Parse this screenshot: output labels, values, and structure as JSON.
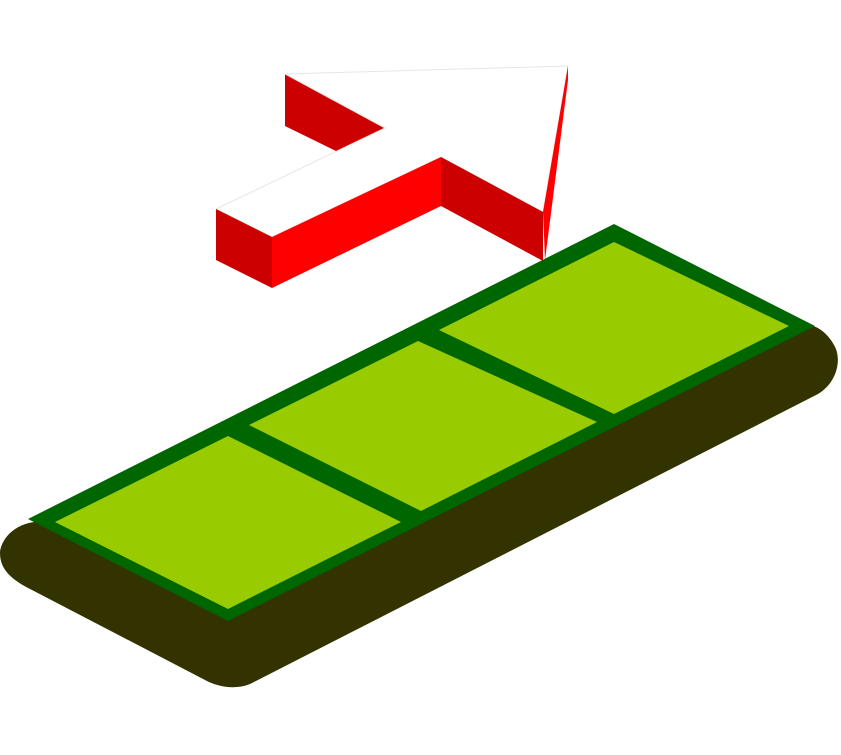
{
  "colors": {
    "background": "#ffffff",
    "arrow_top": "#ffffff",
    "arrow_side_bright": "#ff0000",
    "arrow_side_dark": "#cc0000",
    "base_body": "#333300",
    "grid_border": "#006600",
    "grid_fill": "#99cc00"
  },
  "icons": {
    "arrow": "isometric-3d-arrow-icon",
    "base": "isometric-rounded-base",
    "grid": "three-cell-green-grid"
  },
  "grid": {
    "cells": 3
  }
}
